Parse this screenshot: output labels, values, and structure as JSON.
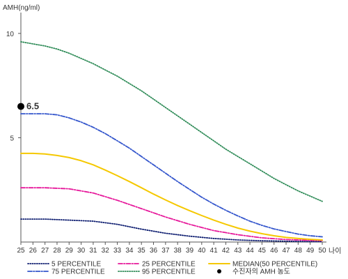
{
  "chart_data": {
    "type": "line",
    "ylabel": "AMH(ng/ml)",
    "xlabel": "나이",
    "xlim": [
      25,
      50
    ],
    "ylim": [
      0,
      11
    ],
    "x_ticks": [
      25,
      26,
      27,
      28,
      29,
      30,
      31,
      32,
      33,
      34,
      35,
      36,
      37,
      38,
      39,
      40,
      41,
      42,
      43,
      44,
      45,
      46,
      47,
      48,
      49,
      50
    ],
    "y_ticks": [
      5,
      10
    ],
    "grid": false,
    "legend_position": "bottom",
    "series": [
      {
        "name": "5 PERCENTILE",
        "color": "#0a1a6e",
        "style": "dotted",
        "x": [
          25,
          27,
          29,
          31,
          33,
          35,
          37,
          39,
          41,
          43,
          45,
          47,
          49,
          50
        ],
        "y": [
          1.1,
          1.1,
          1.05,
          1.0,
          0.85,
          0.62,
          0.42,
          0.28,
          0.17,
          0.1,
          0.06,
          0.04,
          0.02,
          0.02
        ]
      },
      {
        "name": "25 PERCENTILE",
        "color": "#e6179a",
        "style": "dashdot",
        "x": [
          25,
          27,
          29,
          31,
          33,
          35,
          37,
          39,
          41,
          43,
          45,
          47,
          49,
          50
        ],
        "y": [
          2.6,
          2.6,
          2.55,
          2.35,
          2.0,
          1.6,
          1.2,
          0.85,
          0.55,
          0.35,
          0.2,
          0.12,
          0.08,
          0.07
        ]
      },
      {
        "name": "MEDIAN(50 PERCENTILE)",
        "color": "#f5c800",
        "style": "solid",
        "x": [
          25,
          26,
          27,
          28,
          29,
          30,
          31,
          32,
          33,
          34,
          35,
          36,
          37,
          38,
          39,
          40,
          41,
          42,
          43,
          44,
          45,
          46,
          47,
          48,
          49,
          50
        ],
        "y": [
          4.25,
          4.25,
          4.22,
          4.15,
          4.05,
          3.9,
          3.7,
          3.45,
          3.18,
          2.9,
          2.6,
          2.3,
          2.02,
          1.75,
          1.5,
          1.27,
          1.05,
          0.85,
          0.67,
          0.52,
          0.4,
          0.3,
          0.22,
          0.17,
          0.13,
          0.1
        ]
      },
      {
        "name": "75 PERCENTILE",
        "color": "#3355cc",
        "style": "dashdot",
        "x": [
          25,
          26,
          27,
          28,
          29,
          30,
          31,
          32,
          33,
          34,
          35,
          36,
          37,
          38,
          39,
          40,
          41,
          42,
          43,
          44,
          45,
          46,
          47,
          48,
          49,
          50
        ],
        "y": [
          6.15,
          6.15,
          6.15,
          6.1,
          5.95,
          5.75,
          5.5,
          5.2,
          4.85,
          4.5,
          4.1,
          3.7,
          3.3,
          2.9,
          2.52,
          2.15,
          1.82,
          1.52,
          1.25,
          1.0,
          0.8,
          0.63,
          0.5,
          0.38,
          0.3,
          0.25
        ]
      },
      {
        "name": "95 PERCENTILE",
        "color": "#2e8b57",
        "style": "dotted",
        "x": [
          25,
          26,
          27,
          28,
          29,
          30,
          31,
          32,
          33,
          34,
          35,
          36,
          37,
          38,
          39,
          40,
          41,
          42,
          43,
          44,
          45,
          46,
          47,
          48,
          49,
          50
        ],
        "y": [
          9.6,
          9.5,
          9.4,
          9.25,
          9.05,
          8.8,
          8.55,
          8.25,
          7.95,
          7.6,
          7.25,
          6.85,
          6.45,
          6.05,
          5.65,
          5.25,
          4.85,
          4.45,
          4.1,
          3.75,
          3.4,
          3.05,
          2.75,
          2.45,
          2.2,
          1.95
        ]
      }
    ],
    "marker": {
      "name": "수진자의 AMH 농도",
      "x": 25,
      "y": 6.5,
      "label": "6.5",
      "color": "#000000"
    },
    "legend_order": [
      "5 PERCENTILE",
      "25 PERCENTILE",
      "MEDIAN(50 PERCENTILE)",
      "75 PERCENTILE",
      "95 PERCENTILE",
      "수진자의 AMH 농도"
    ]
  }
}
